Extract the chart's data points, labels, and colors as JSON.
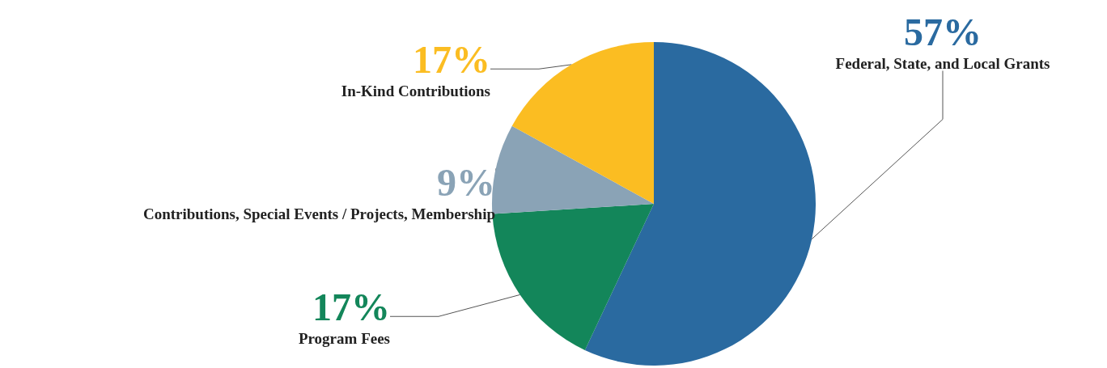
{
  "chart_data": {
    "type": "pie",
    "categories": [
      "Federal, State, and Local Grants",
      "Program Fees",
      "Contributions, Special Events / Projects, Membership",
      "In-Kind Contributions"
    ],
    "values": [
      57,
      17,
      9,
      17
    ],
    "colors": [
      "#2a6aa0",
      "#13865a",
      "#8aa3b6",
      "#fbbd22"
    ],
    "value_labels": [
      "57%",
      "17%",
      "9%",
      "17%"
    ],
    "legend": false
  }
}
